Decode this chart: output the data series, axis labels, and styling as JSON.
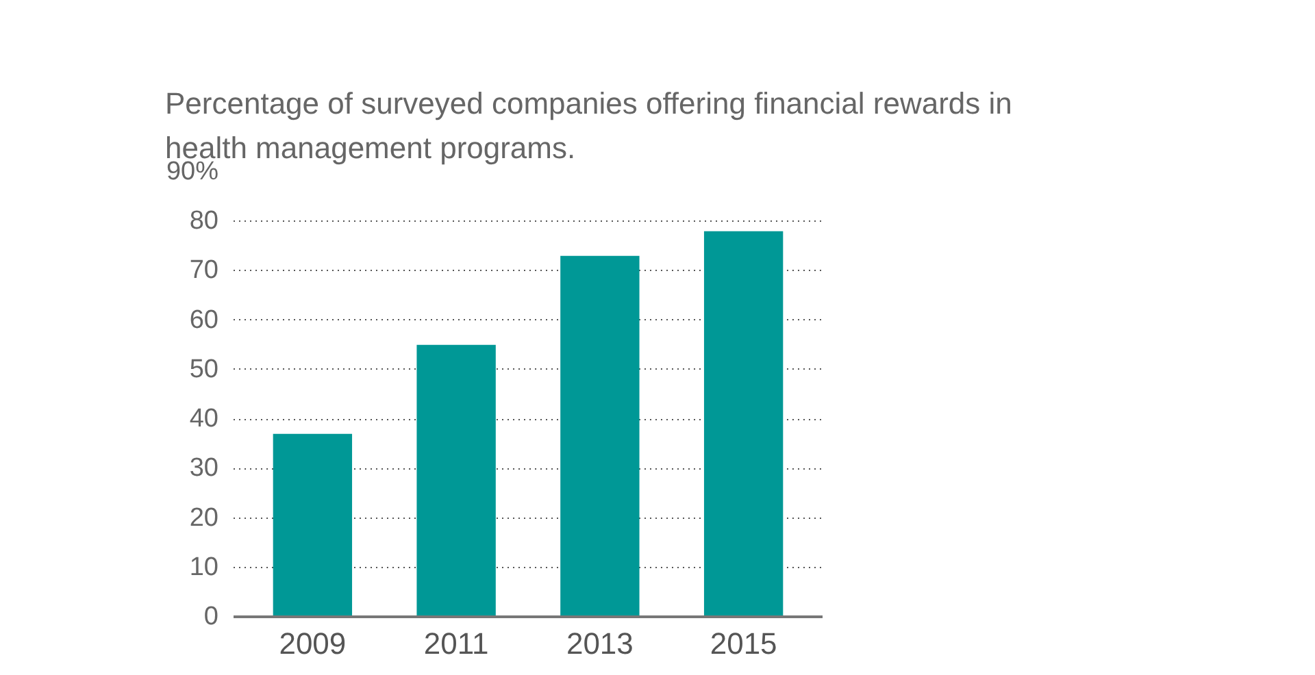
{
  "chart_data": {
    "type": "bar",
    "title": "Percentage of surveyed companies offering financial rewards in\nhealth management programs.",
    "categories": [
      "2009",
      "2011",
      "2013",
      "2015"
    ],
    "values": [
      37,
      55,
      73,
      78
    ],
    "color": "#009896",
    "ylim": [
      0,
      90
    ],
    "yticks": [
      0,
      10,
      20,
      30,
      40,
      50,
      60,
      70,
      80,
      {
        "value": 90,
        "label": "90%"
      }
    ],
    "grid": "y"
  }
}
